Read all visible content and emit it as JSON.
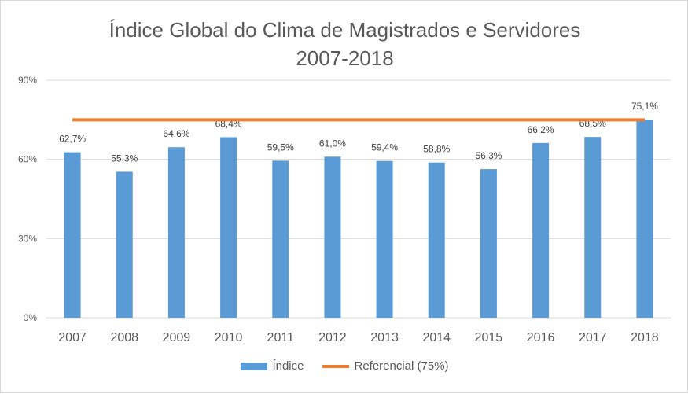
{
  "chart_data": {
    "type": "bar",
    "title": "Índice Global do Clima de Magistrados e Servidores",
    "subtitle": "2007-2018",
    "categories": [
      "2007",
      "2008",
      "2009",
      "2010",
      "2011",
      "2012",
      "2013",
      "2014",
      "2015",
      "2016",
      "2017",
      "2018"
    ],
    "series": [
      {
        "name": "Índice",
        "type": "bar",
        "values": [
          62.7,
          55.3,
          64.6,
          68.4,
          59.5,
          61.0,
          59.4,
          58.8,
          56.3,
          66.2,
          68.5,
          75.1
        ],
        "data_labels": [
          "62,7%",
          "55,3%",
          "64,6%",
          "68,4%",
          "59,5%",
          "61,0%",
          "59,4%",
          "58,8%",
          "56,3%",
          "66,2%",
          "68,5%",
          "75,1%"
        ],
        "color": "#5b9bd5"
      },
      {
        "name": "Referencial (75%)",
        "type": "line",
        "values": [
          75,
          75,
          75,
          75,
          75,
          75,
          75,
          75,
          75,
          75,
          75,
          75
        ],
        "color": "#ed7d31"
      }
    ],
    "ylim": [
      0,
      90
    ],
    "yticks": [
      0,
      30,
      60,
      90
    ],
    "ytick_labels": [
      "0%",
      "30%",
      "60%",
      "90%"
    ],
    "grid": true,
    "legend_position": "bottom"
  }
}
